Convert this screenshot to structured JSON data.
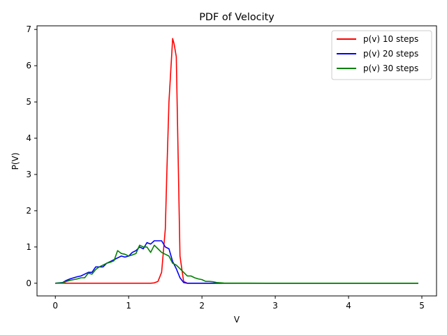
{
  "chart_data": {
    "type": "line",
    "title": "PDF of Velocity",
    "xlabel": "V",
    "ylabel": "P(V)",
    "xlim": [
      -0.25,
      5.2
    ],
    "ylim": [
      -0.35,
      7.1
    ],
    "xticks": [
      "0",
      "1",
      "2",
      "3",
      "4",
      "5"
    ],
    "yticks": [
      "0",
      "1",
      "2",
      "3",
      "4",
      "5",
      "6",
      "7"
    ],
    "legend_position": "top-right",
    "grid": false,
    "series": [
      {
        "name": "p(v) 10 steps",
        "color": "#ff0000",
        "x": [
          0,
          0.5,
          1.0,
          1.3,
          1.35,
          1.4,
          1.45,
          1.5,
          1.52,
          1.55,
          1.6,
          1.62,
          1.65,
          1.7,
          1.75,
          1.8,
          2.0,
          3.0,
          4.0,
          4.95
        ],
        "y": [
          0,
          0,
          0,
          0,
          0.01,
          0.05,
          0.3,
          1.5,
          3.0,
          5.0,
          6.75,
          6.6,
          6.25,
          0.75,
          0.05,
          0,
          0,
          0,
          0,
          0
        ]
      },
      {
        "name": "p(v) 20 steps",
        "color": "#0000ff",
        "x": [
          0,
          0.1,
          0.15,
          0.2,
          0.25,
          0.3,
          0.35,
          0.4,
          0.45,
          0.5,
          0.55,
          0.6,
          0.65,
          0.7,
          0.75,
          0.8,
          0.85,
          0.9,
          0.95,
          1.0,
          1.05,
          1.1,
          1.15,
          1.2,
          1.25,
          1.3,
          1.35,
          1.4,
          1.45,
          1.5,
          1.55,
          1.6,
          1.65,
          1.7,
          1.75,
          1.8,
          2.0,
          3.0,
          4.0,
          4.95
        ],
        "y": [
          0,
          0.02,
          0.08,
          0.12,
          0.15,
          0.18,
          0.2,
          0.25,
          0.3,
          0.3,
          0.45,
          0.45,
          0.45,
          0.55,
          0.6,
          0.65,
          0.7,
          0.75,
          0.72,
          0.75,
          0.85,
          0.9,
          1.0,
          0.95,
          1.12,
          1.08,
          1.17,
          1.17,
          1.17,
          1.0,
          0.95,
          0.6,
          0.4,
          0.15,
          0.02,
          0,
          0,
          0,
          0,
          0
        ]
      },
      {
        "name": "p(v) 30 steps",
        "color": "#008000",
        "x": [
          0,
          0.1,
          0.15,
          0.2,
          0.25,
          0.3,
          0.35,
          0.4,
          0.45,
          0.5,
          0.55,
          0.6,
          0.65,
          0.7,
          0.75,
          0.8,
          0.85,
          0.9,
          0.95,
          1.0,
          1.05,
          1.1,
          1.15,
          1.2,
          1.25,
          1.3,
          1.35,
          1.4,
          1.45,
          1.5,
          1.55,
          1.6,
          1.65,
          1.7,
          1.75,
          1.8,
          1.85,
          1.9,
          1.95,
          2.0,
          2.05,
          2.1,
          2.15,
          2.2,
          2.3,
          3.0,
          4.0,
          4.95
        ],
        "y": [
          0,
          0.01,
          0.05,
          0.08,
          0.1,
          0.12,
          0.15,
          0.15,
          0.28,
          0.25,
          0.38,
          0.45,
          0.5,
          0.55,
          0.58,
          0.62,
          0.9,
          0.82,
          0.8,
          0.75,
          0.78,
          0.82,
          1.05,
          1.0,
          1.0,
          0.85,
          1.05,
          0.95,
          0.85,
          0.8,
          0.75,
          0.55,
          0.5,
          0.4,
          0.3,
          0.2,
          0.2,
          0.15,
          0.12,
          0.1,
          0.05,
          0.05,
          0.04,
          0.02,
          0.005,
          0,
          0,
          0
        ]
      }
    ]
  }
}
